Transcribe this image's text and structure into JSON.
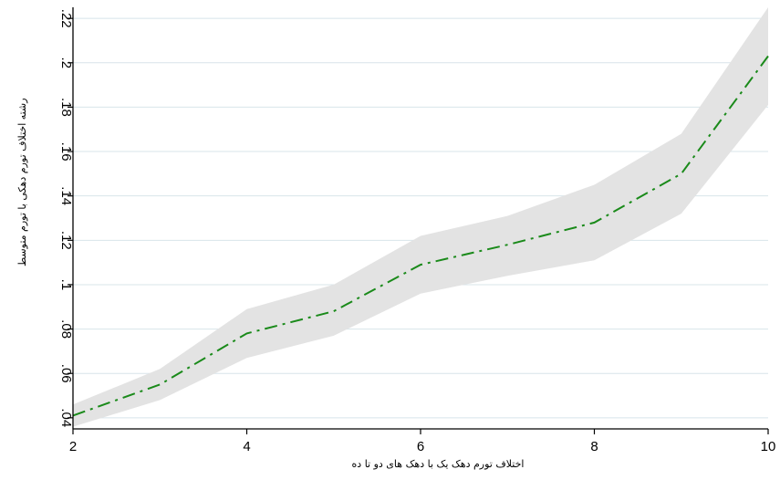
{
  "chart_data": {
    "type": "line",
    "xlabel": "اختلاف تورم دهک یک با دهک های دو تا ده",
    "ylabel": "رشته اختلاف تورم دهکی با تورم متوسط",
    "x": [
      2,
      3,
      4,
      5,
      6,
      7,
      8,
      9,
      10
    ],
    "series": [
      {
        "values": [
          0.041,
          0.055,
          0.078,
          0.088,
          0.109,
          0.118,
          0.128,
          0.15,
          0.203
        ],
        "ci_upper": [
          0.046,
          0.062,
          0.089,
          0.1,
          0.122,
          0.131,
          0.145,
          0.168,
          0.225
        ],
        "ci_lower": [
          0.036,
          0.048,
          0.067,
          0.077,
          0.096,
          0.104,
          0.111,
          0.132,
          0.181
        ],
        "line_color": "#1a8a1a",
        "band_color": "#e3e3e3"
      }
    ],
    "xlim": [
      2,
      10
    ],
    "ylim": [
      0.035,
      0.225
    ],
    "x_ticks": [
      "2",
      "4",
      "6",
      "8",
      "10"
    ],
    "x_tick_values": [
      2,
      4,
      6,
      8,
      10
    ],
    "y_ticks": [
      ".04",
      ".06",
      ".08",
      ".1",
      ".12",
      ".14",
      ".16",
      ".18",
      ".2",
      ".22"
    ],
    "y_tick_values": [
      0.04,
      0.06,
      0.08,
      0.1,
      0.12,
      0.14,
      0.16,
      0.18,
      0.2,
      0.22
    ],
    "grid": true,
    "grid_color": "#d8e4ea"
  }
}
